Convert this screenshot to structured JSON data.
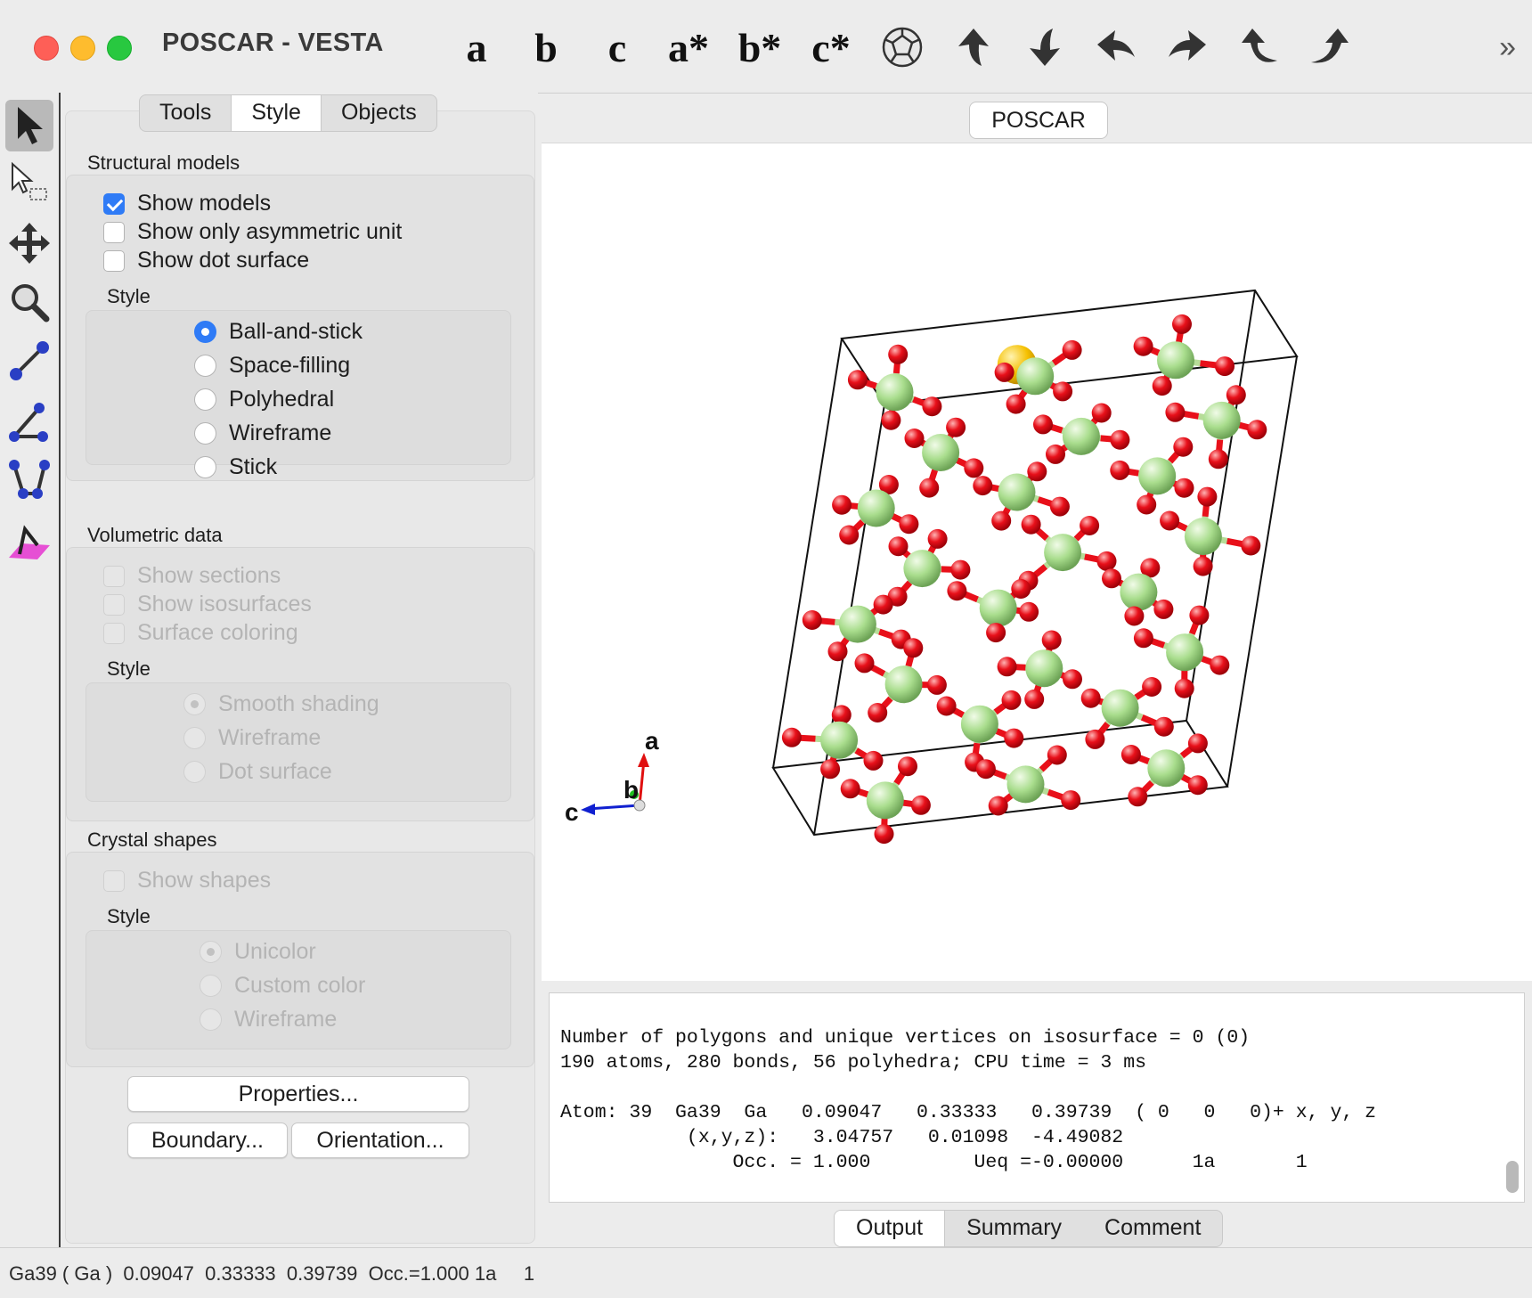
{
  "window": {
    "title": "POSCAR - VESTA"
  },
  "toolbar": {
    "axis_buttons": [
      "a",
      "b",
      "c",
      "a*",
      "b*",
      "c*"
    ],
    "icons": [
      "polyhedron-icon",
      "rotate-up-icon",
      "rotate-down-icon",
      "rotate-left-icon",
      "rotate-right-icon",
      "rotate-ccw-icon",
      "rotate-cw-icon"
    ],
    "overflow": "»"
  },
  "tools": [
    "select-arrow-icon",
    "select-box-icon",
    "translate-icon",
    "magnify-icon",
    "distance-icon",
    "angle-icon",
    "dihedral-icon",
    "plane-icon"
  ],
  "panel": {
    "tabs": [
      "Tools",
      "Style",
      "Objects"
    ],
    "selected_tab": "Style",
    "structural": {
      "title": "Structural models",
      "show_models": "Show models",
      "show_asym": "Show only asymmetric unit",
      "show_dot": "Show dot surface",
      "style_title": "Style",
      "styles": [
        "Ball-and-stick",
        "Space-filling",
        "Polyhedral",
        "Wireframe",
        "Stick"
      ],
      "selected_style": "Ball-and-stick"
    },
    "volumetric": {
      "title": "Volumetric data",
      "show_sections": "Show sections",
      "show_iso": "Show isosurfaces",
      "surface_coloring": "Surface coloring",
      "style_title": "Style",
      "styles": [
        "Smooth shading",
        "Wireframe",
        "Dot surface"
      ]
    },
    "crystal": {
      "title": "Crystal shapes",
      "show_shapes": "Show shapes",
      "style_title": "Style",
      "styles": [
        "Unicolor",
        "Custom color",
        "Wireframe"
      ]
    },
    "buttons": {
      "properties": "Properties...",
      "boundary": "Boundary...",
      "orientation": "Orientation..."
    }
  },
  "document_tab": "POSCAR",
  "axes_labels": {
    "a": "a",
    "b": "b",
    "c": "c"
  },
  "colors": {
    "ga_atom": "#9ed484",
    "o_atom": "#e8101a",
    "bond_green": "#b6dc98",
    "selected_atom": "#f5c000",
    "accent": "#2f7bf6"
  },
  "output": {
    "line1": "Number of polygons and unique vertices on isosurface = 0 (0)",
    "line2": "190 atoms, 280 bonds, 56 polyhedra; CPU time = 3 ms",
    "line3": "",
    "line4": "Atom: 39  Ga39  Ga   0.09047   0.33333   0.39739  ( 0   0   0)+ x, y, z",
    "line5": "           (x,y,z):   3.04757   0.01098  -4.49082",
    "line6": "               Occ. = 1.000         Ueq =-0.00000      1a       1"
  },
  "bottom_tabs": [
    "Output",
    "Summary",
    "Comment"
  ],
  "status": "Ga39 ( Ga )  0.09047  0.33333  0.39739  Occ.=1.000 1a     1"
}
